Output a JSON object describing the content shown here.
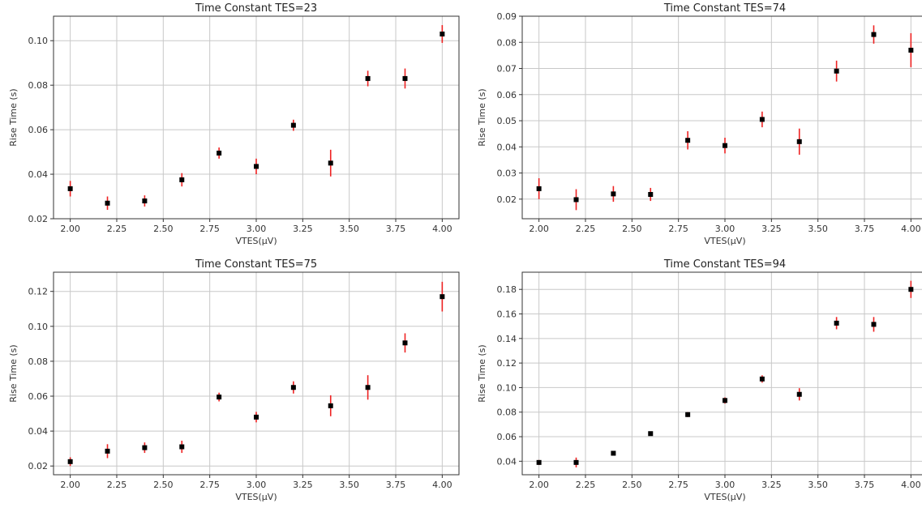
{
  "chart_data": [
    {
      "type": "scatter",
      "title": "Time Constant TES=23",
      "xlabel": "VTES(μV)",
      "ylabel": "Rise Time (s)",
      "xlim": [
        1.91,
        4.09
      ],
      "ylim": [
        0.02,
        0.111
      ],
      "xticks": [
        "2.00",
        "2.25",
        "2.50",
        "2.75",
        "3.00",
        "3.25",
        "3.50",
        "3.75",
        "4.00"
      ],
      "yticks": [
        "0.02",
        "0.04",
        "0.06",
        "0.08",
        "0.10"
      ],
      "grid": true,
      "marker": "black square with red vertical error bar",
      "x": [
        2.0,
        2.2,
        2.4,
        2.6,
        2.8,
        3.0,
        3.2,
        3.4,
        3.6,
        3.8,
        4.0
      ],
      "y": [
        0.0335,
        0.027,
        0.028,
        0.0375,
        0.0495,
        0.0435,
        0.062,
        0.045,
        0.083,
        0.083,
        0.103
      ],
      "yerr": [
        0.0035,
        0.003,
        0.0025,
        0.003,
        0.0025,
        0.0035,
        0.0025,
        0.006,
        0.0035,
        0.0045,
        0.004
      ]
    },
    {
      "type": "scatter",
      "title": "Time Constant TES=74",
      "xlabel": "VTES(μV)",
      "ylabel": "Rise Time (s)",
      "xlim": [
        1.91,
        4.09
      ],
      "ylim": [
        0.0125,
        0.09
      ],
      "xticks": [
        "2.00",
        "2.25",
        "2.50",
        "2.75",
        "3.00",
        "3.25",
        "3.50",
        "3.75",
        "4.00"
      ],
      "yticks": [
        "0.02",
        "0.03",
        "0.04",
        "0.05",
        "0.06",
        "0.07",
        "0.08",
        "0.09"
      ],
      "grid": true,
      "marker": "black square with red vertical error bar",
      "x": [
        2.0,
        2.2,
        2.4,
        2.6,
        2.8,
        3.0,
        3.2,
        3.4,
        3.6,
        3.8,
        4.0
      ],
      "y": [
        0.024,
        0.0198,
        0.022,
        0.0218,
        0.0425,
        0.0405,
        0.0505,
        0.042,
        0.069,
        0.083,
        0.077
      ],
      "yerr": [
        0.004,
        0.004,
        0.003,
        0.0025,
        0.0035,
        0.003,
        0.003,
        0.005,
        0.004,
        0.0035,
        0.0065
      ]
    },
    {
      "type": "scatter",
      "title": "Time Constant TES=75",
      "xlabel": "VTES(μV)",
      "ylabel": "Rise Time (s)",
      "xlim": [
        1.91,
        4.09
      ],
      "ylim": [
        0.015,
        0.131
      ],
      "xticks": [
        "2.00",
        "2.25",
        "2.50",
        "2.75",
        "3.00",
        "3.25",
        "3.50",
        "3.75",
        "4.00"
      ],
      "yticks": [
        "0.02",
        "0.04",
        "0.06",
        "0.08",
        "0.10",
        "0.12"
      ],
      "grid": true,
      "marker": "black square with red vertical error bar",
      "x": [
        2.0,
        2.2,
        2.4,
        2.6,
        2.8,
        3.0,
        3.2,
        3.4,
        3.6,
        3.8,
        4.0
      ],
      "y": [
        0.0225,
        0.0285,
        0.0305,
        0.031,
        0.0595,
        0.048,
        0.065,
        0.0545,
        0.065,
        0.0905,
        0.117
      ],
      "yerr": [
        0.0025,
        0.004,
        0.003,
        0.0035,
        0.0025,
        0.003,
        0.0035,
        0.006,
        0.007,
        0.0055,
        0.0085
      ]
    },
    {
      "type": "scatter",
      "title": "Time Constant TES=94",
      "xlabel": "VTES(μV)",
      "ylabel": "Rise Time (s)",
      "xlim": [
        1.91,
        4.09
      ],
      "ylim": [
        0.029,
        0.194
      ],
      "xticks": [
        "2.00",
        "2.25",
        "2.50",
        "2.75",
        "3.00",
        "3.25",
        "3.50",
        "3.75",
        "4.00"
      ],
      "yticks": [
        "0.04",
        "0.06",
        "0.08",
        "0.10",
        "0.12",
        "0.14",
        "0.16",
        "0.18"
      ],
      "grid": true,
      "marker": "black square with red vertical error bar",
      "x": [
        2.0,
        2.2,
        2.4,
        2.6,
        2.8,
        3.0,
        3.2,
        3.4,
        3.6,
        3.8,
        4.0
      ],
      "y": [
        0.039,
        0.039,
        0.0465,
        0.0625,
        0.078,
        0.0895,
        0.107,
        0.0945,
        0.1525,
        0.1515,
        0.18
      ],
      "yerr": [
        0.002,
        0.004,
        0.0015,
        0.0015,
        0.002,
        0.0025,
        0.003,
        0.005,
        0.005,
        0.006,
        0.007
      ]
    }
  ]
}
